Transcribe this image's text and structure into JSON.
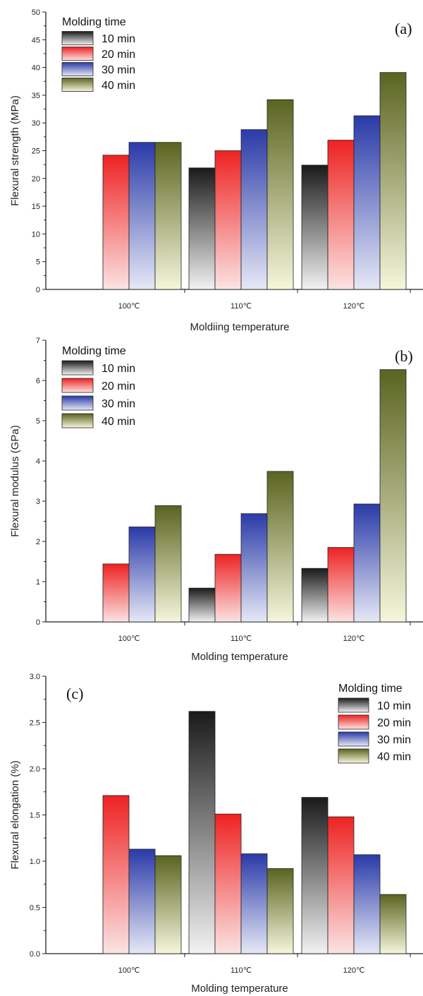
{
  "chart_data": [
    {
      "type": "bar",
      "panel_label": "(a)",
      "categories": [
        "100℃",
        "110℃",
        "120℃"
      ],
      "series": [
        {
          "name": "10 min",
          "values": [
            0,
            21.9,
            22.4
          ]
        },
        {
          "name": "20 min",
          "values": [
            24.2,
            25.0,
            26.9
          ]
        },
        {
          "name": "30 min",
          "values": [
            26.5,
            28.8,
            31.3
          ]
        },
        {
          "name": "40 min",
          "values": [
            26.5,
            34.2,
            39.1
          ]
        }
      ],
      "xlabel": "Moldiing temperature",
      "ylabel": "Flexural strength (MPa)",
      "ylim": [
        0,
        50
      ],
      "yticks": [
        "0",
        "5",
        "10",
        "15",
        "20",
        "25",
        "30",
        "35",
        "40",
        "45",
        "50"
      ],
      "legend_title": "Molding time",
      "legend_position": "top-left",
      "grid": false
    },
    {
      "type": "bar",
      "panel_label": "(b)",
      "categories": [
        "100℃",
        "110℃",
        "120℃"
      ],
      "series": [
        {
          "name": "10 min",
          "values": [
            0,
            0.84,
            1.33
          ]
        },
        {
          "name": "20 min",
          "values": [
            1.44,
            1.68,
            1.85
          ]
        },
        {
          "name": "30 min",
          "values": [
            2.36,
            2.69,
            2.93
          ]
        },
        {
          "name": "40 min",
          "values": [
            2.89,
            3.74,
            6.27
          ]
        }
      ],
      "xlabel": "Molding temperature",
      "ylabel": "Flexural modulus (GPa)",
      "ylim": [
        0,
        7
      ],
      "yticks": [
        "0",
        "1",
        "2",
        "3",
        "4",
        "5",
        "6",
        "7"
      ],
      "legend_title": "Molding time",
      "legend_position": "top-left",
      "grid": false
    },
    {
      "type": "bar",
      "panel_label": "(c)",
      "categories": [
        "100℃",
        "110℃",
        "120℃"
      ],
      "series": [
        {
          "name": "10 min",
          "values": [
            0,
            2.62,
            1.69
          ]
        },
        {
          "name": "20 min",
          "values": [
            1.71,
            1.51,
            1.48
          ]
        },
        {
          "name": "30 min",
          "values": [
            1.13,
            1.08,
            1.07
          ]
        },
        {
          "name": "40 min",
          "values": [
            1.06,
            0.92,
            0.64
          ]
        }
      ],
      "xlabel": "Molding temperature",
      "ylabel": "Flexural elongation (%)",
      "ylim": [
        0,
        3.0
      ],
      "yticks": [
        "0.0",
        "0.5",
        "1.0",
        "1.5",
        "2.0",
        "2.5",
        "3.0"
      ],
      "legend_title": "Molding time",
      "legend_position": "top-right",
      "grid": false
    }
  ],
  "series_colors": [
    {
      "series": "10 min",
      "top": "#1a1a1a",
      "bottom": "#f2f2f2"
    },
    {
      "series": "20 min",
      "top": "#ee2222",
      "bottom": "#fbe3e3"
    },
    {
      "series": "30 min",
      "top": "#2a3aa8",
      "bottom": "#e6e8f6"
    },
    {
      "series": "40 min",
      "top": "#5a6420",
      "bottom": "#f6f6dc"
    }
  ]
}
